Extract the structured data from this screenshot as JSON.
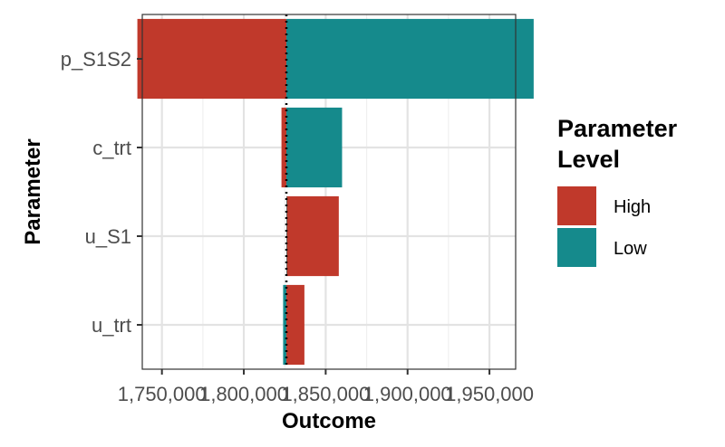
{
  "chart_data": {
    "type": "bar",
    "orientation": "horizontal",
    "subtype": "tornado",
    "title": "",
    "xlabel": "Outcome",
    "ylabel": "Parameter",
    "categories": [
      "p_S1S2",
      "c_trt",
      "u_S1",
      "u_trt"
    ],
    "base_value": 1826000,
    "xlim": [
      1738000,
      1966000
    ],
    "x_ticks": [
      1750000,
      1800000,
      1850000,
      1900000,
      1950000
    ],
    "x_tick_labels": [
      "1,750,000",
      "1,800,000",
      "1,850,000",
      "1,900,000",
      "1,950,000"
    ],
    "series": [
      {
        "name": "High",
        "color": "#C0392B",
        "values": [
          1735000,
          1823000,
          1858000,
          1837000
        ]
      },
      {
        "name": "Low",
        "color": "#158A8C",
        "values": [
          1977000,
          1860000,
          1826000,
          1824000
        ]
      }
    ],
    "legend": {
      "title_line1": "Parameter",
      "title_line2": "Level",
      "position": "right"
    },
    "grid": true,
    "reference_line": "dotted"
  }
}
